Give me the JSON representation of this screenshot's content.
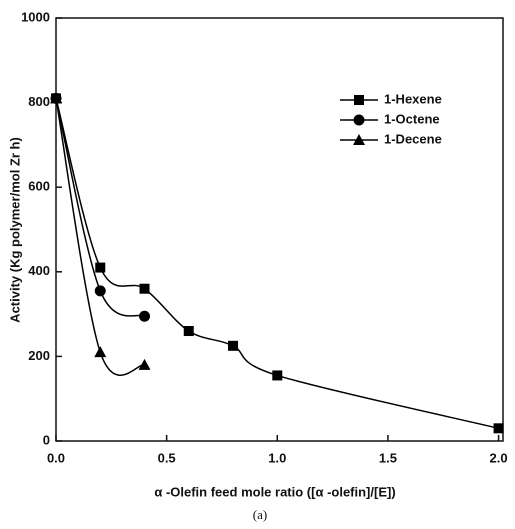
{
  "chart_data": {
    "type": "line",
    "xlabel": "α -Olefin feed mole ratio ([α -olefin]/[E])",
    "ylabel": "Activity (Kg polymer/mol Zr h)",
    "caption": "(a)",
    "xlim": [
      0,
      2.02
    ],
    "ylim": [
      0,
      1000
    ],
    "xticks": [
      {
        "value": 0,
        "label": "0.0"
      },
      {
        "value": 0.5,
        "label": "0.5"
      },
      {
        "value": 1,
        "label": "1.0"
      },
      {
        "value": 1.5,
        "label": "1.5"
      },
      {
        "value": 2,
        "label": "2.0"
      }
    ],
    "yticks": [
      0,
      200,
      400,
      600,
      800,
      1000
    ],
    "legend": "upper right",
    "series": [
      {
        "name": "1-Hexene",
        "color": "#000000",
        "marker": "square",
        "x": [
          0,
          0.2,
          0.4,
          0.6,
          0.8,
          1.0,
          2.0
        ],
        "values": [
          810,
          410,
          360,
          260,
          225,
          155,
          30
        ]
      },
      {
        "name": "1-Octene",
        "color": "#000000",
        "marker": "circle",
        "x": [
          0,
          0.2,
          0.4
        ],
        "values": [
          810,
          355,
          295
        ]
      },
      {
        "name": "1-Decene",
        "color": "#000000",
        "marker": "triangle",
        "x": [
          0,
          0.2,
          0.4
        ],
        "values": [
          810,
          210,
          180
        ]
      }
    ]
  }
}
